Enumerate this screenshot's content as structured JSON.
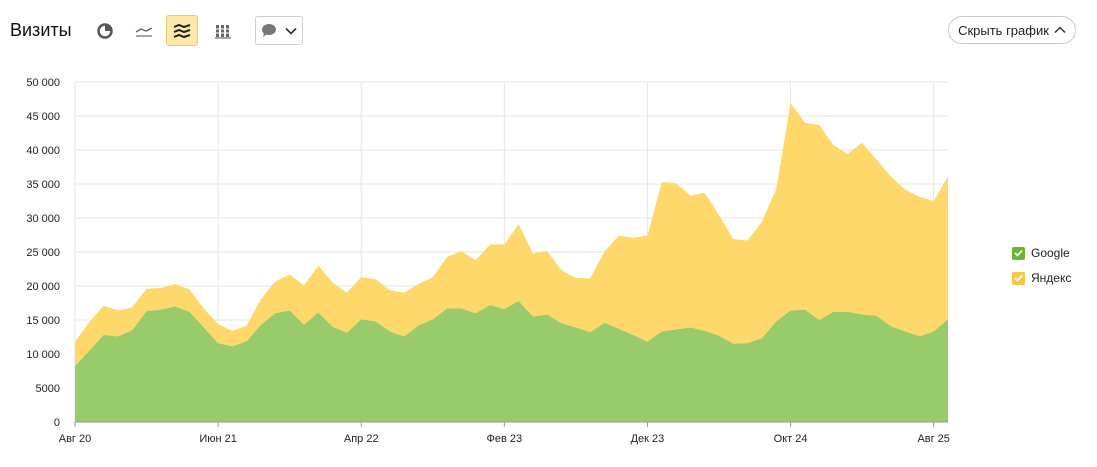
{
  "header": {
    "title": "Визиты",
    "hide_chart_label": "Скрыть график"
  },
  "icons": {
    "view_buttons": [
      "pie-chart-icon",
      "line-chart-icon",
      "stacked-area-chart-icon",
      "column-chart-icon"
    ],
    "active_view": "stacked-area-chart-icon",
    "dropdown": "comment-icon"
  },
  "colors": {
    "google": "#99cb6b",
    "yandex": "#fed86a",
    "legend_google": "#6eb431",
    "legend_yandex": "#f3c94a",
    "active_button_bg": "#ffe9a8"
  },
  "chart_data": {
    "type": "area",
    "stacked": true,
    "x_ticks": [
      "Авг 20",
      "Июн 21",
      "Апр 22",
      "Фев 23",
      "Дек 23",
      "Окт 24",
      "Авг 25"
    ],
    "ylim": [
      0,
      50000
    ],
    "y_ticks": [
      "0",
      "5000",
      "10 000",
      "15 000",
      "20 000",
      "25 000",
      "30 000",
      "35 000",
      "40 000",
      "45 000",
      "50 000"
    ],
    "grid": true,
    "legend_position": "right",
    "series": [
      {
        "name": "Google",
        "values": [
          8200,
          10500,
          12800,
          12600,
          13500,
          16300,
          16500,
          17000,
          16200,
          13900,
          11600,
          11100,
          11900,
          14300,
          16000,
          16400,
          14300,
          16100,
          14000,
          13100,
          15100,
          14800,
          13300,
          12600,
          14200,
          15100,
          16700,
          16700,
          16000,
          17200,
          16600,
          17800,
          15500,
          15800,
          14500,
          13900,
          13200,
          14600,
          13700,
          12800,
          11800,
          13300,
          13600,
          13900,
          13400,
          12700,
          11500,
          11600,
          12300,
          14800,
          16400,
          16500,
          15000,
          16200,
          16200,
          15800,
          15600,
          14100,
          13300,
          12600,
          13300,
          15100
        ]
      },
      {
        "name": "Яндекс",
        "values": [
          3600,
          4200,
          4300,
          3800,
          3400,
          3300,
          3200,
          3300,
          3300,
          2800,
          2800,
          2300,
          2300,
          3800,
          4700,
          5300,
          5800,
          6900,
          6500,
          5900,
          6200,
          6200,
          6100,
          6400,
          6100,
          6200,
          7600,
          8400,
          7800,
          8900,
          9500,
          11300,
          9300,
          9300,
          7800,
          7300,
          7900,
          10500,
          13700,
          14300,
          15600,
          22000,
          21500,
          19400,
          20300,
          17700,
          15400,
          15100,
          17200,
          19500,
          30500,
          27500,
          28700,
          24500,
          23200,
          25300,
          23000,
          22000,
          20900,
          20500,
          19200,
          21000
        ]
      }
    ]
  }
}
